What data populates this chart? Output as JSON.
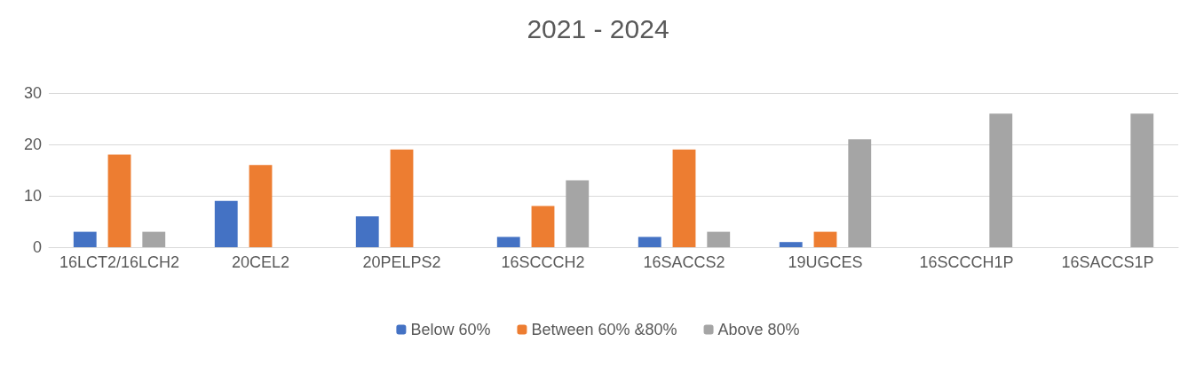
{
  "chart_data": {
    "type": "bar",
    "title": "2021 - 2024",
    "categories": [
      "16LCT2/16LCH2",
      "20CEL2",
      "20PELPS2",
      "16SCCCH2",
      "16SACCS2",
      "19UGCES",
      "16SCCCH1P",
      "16SACCS1P"
    ],
    "series": [
      {
        "name": "Below 60%",
        "color": "#4472c4",
        "values": [
          3,
          9,
          6,
          2,
          2,
          1,
          0,
          0
        ]
      },
      {
        "name": "Between 60% &80%",
        "color": "#ed7d31",
        "values": [
          18,
          16,
          19,
          8,
          19,
          3,
          0,
          0
        ]
      },
      {
        "name": "Above 80%",
        "color": "#a5a5a5",
        "values": [
          3,
          0,
          0,
          13,
          3,
          21,
          26,
          26
        ]
      }
    ],
    "ylim": [
      0,
      30
    ],
    "yticks": [
      0,
      10,
      20,
      30
    ],
    "grid": "y",
    "legend": "bottom"
  }
}
